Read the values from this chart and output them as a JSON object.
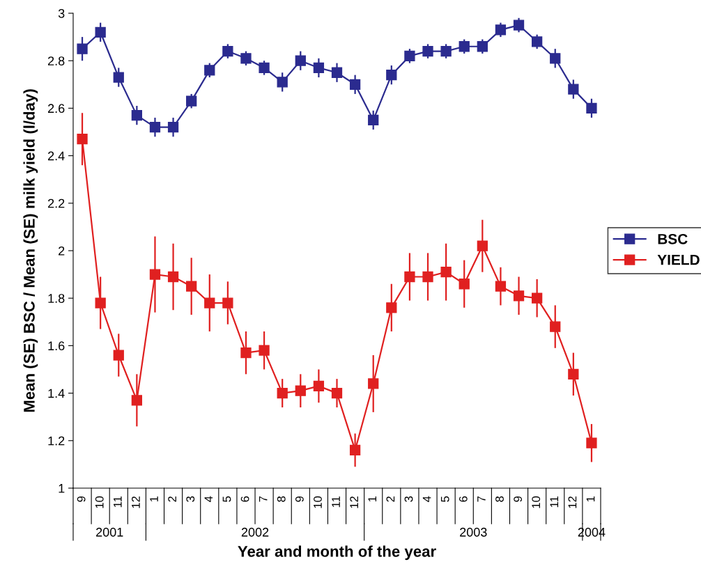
{
  "chart_data": {
    "type": "line",
    "xlabel": "Year and month of the year",
    "ylabel": "Mean (SE) BSC / Mean (SE) milk yield (l/day)",
    "categories": [
      "9",
      "10",
      "11",
      "12",
      "1",
      "2",
      "3",
      "4",
      "5",
      "6",
      "7",
      "8",
      "9",
      "10",
      "11",
      "12",
      "1",
      "2",
      "3",
      "4",
      "5",
      "6",
      "7",
      "8",
      "9",
      "10",
      "11",
      "12",
      "1"
    ],
    "annotations": [
      "2001",
      "2002",
      "2003",
      "2004"
    ],
    "series": [
      {
        "name": "BSC",
        "color": "#2b2b8f",
        "values": [
          2.85,
          2.92,
          2.73,
          2.57,
          2.52,
          2.52,
          2.63,
          2.76,
          2.84,
          2.81,
          2.77,
          2.71,
          2.8,
          2.77,
          2.75,
          2.7,
          2.55,
          2.74,
          2.82,
          2.84,
          2.84,
          2.86,
          2.86,
          2.93,
          2.95,
          2.88,
          2.81,
          2.68,
          2.6
        ],
        "errors": [
          0.05,
          0.04,
          0.04,
          0.04,
          0.04,
          0.04,
          0.03,
          0.03,
          0.03,
          0.03,
          0.03,
          0.04,
          0.04,
          0.04,
          0.04,
          0.04,
          0.04,
          0.04,
          0.03,
          0.03,
          0.03,
          0.03,
          0.03,
          0.03,
          0.03,
          0.03,
          0.04,
          0.04,
          0.04
        ]
      },
      {
        "name": "YIELD",
        "color": "#e02020",
        "values": [
          2.47,
          1.78,
          1.56,
          1.37,
          1.9,
          1.89,
          1.85,
          1.78,
          1.78,
          1.57,
          1.58,
          1.4,
          1.41,
          1.43,
          1.4,
          1.16,
          1.44,
          1.76,
          1.89,
          1.89,
          1.91,
          1.86,
          2.02,
          1.85,
          1.81,
          1.8,
          1.68,
          1.48,
          1.19
        ],
        "errors": [
          0.11,
          0.11,
          0.09,
          0.11,
          0.16,
          0.14,
          0.12,
          0.12,
          0.09,
          0.09,
          0.08,
          0.06,
          0.07,
          0.07,
          0.06,
          0.07,
          0.12,
          0.1,
          0.1,
          0.1,
          0.12,
          0.1,
          0.11,
          0.08,
          0.08,
          0.08,
          0.09,
          0.09,
          0.08
        ]
      }
    ],
    "ylim": [
      1,
      3
    ],
    "yticks": [
      1,
      1.2,
      1.4,
      1.6,
      1.8,
      2,
      2.2,
      2.4,
      2.6,
      2.8,
      3
    ],
    "marker": "square",
    "line_style": "solid",
    "grid": false,
    "legend": "right"
  }
}
